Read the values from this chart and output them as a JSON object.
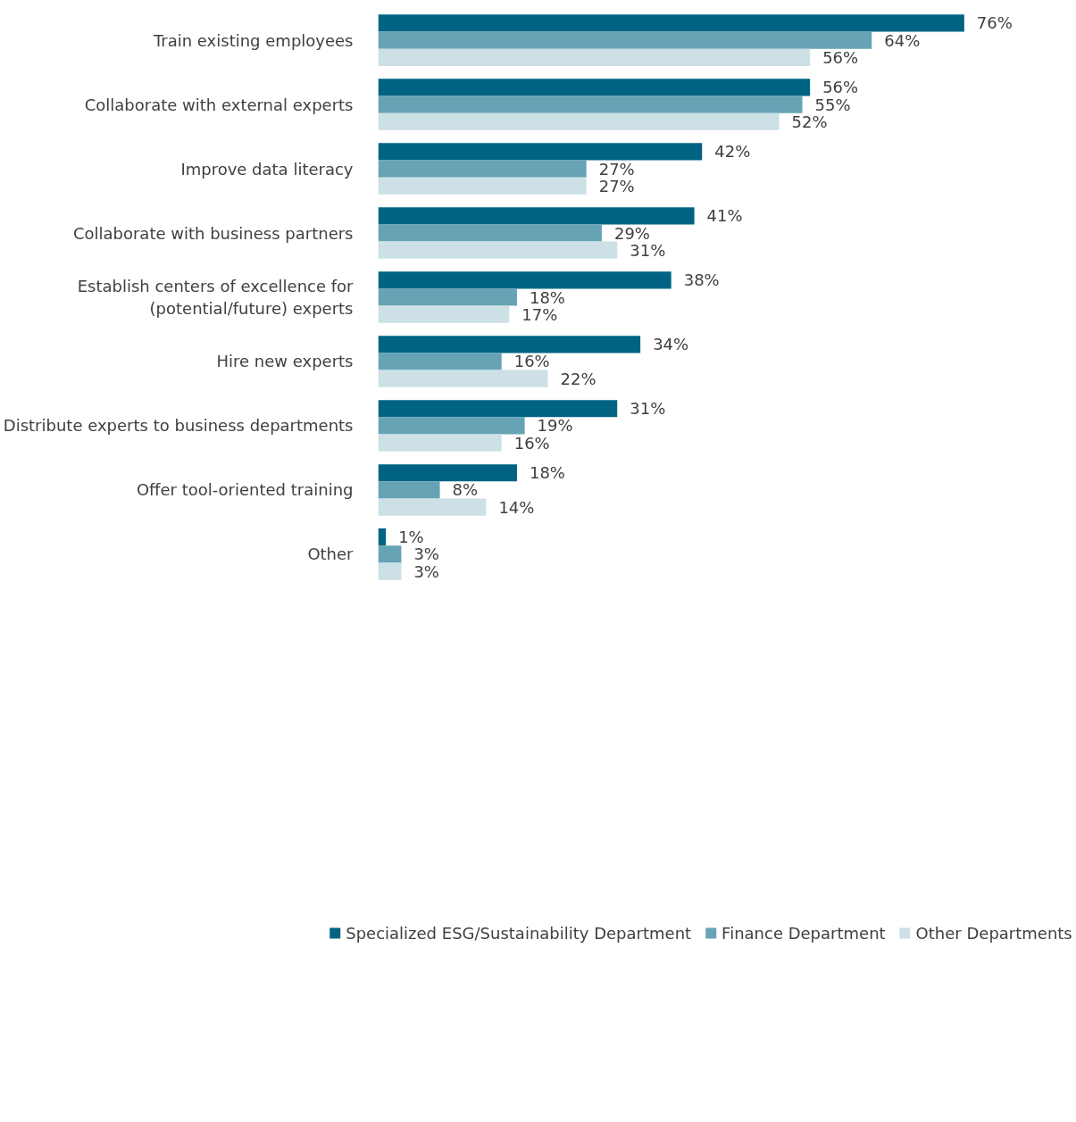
{
  "chart_data": {
    "type": "bar",
    "orientation": "horizontal",
    "categories": [
      "Train existing employees",
      "Collaborate with external experts",
      "Improve data literacy",
      "Collaborate with business partners",
      "Establish centers of excellence for (potential/future) experts",
      "Hire new experts",
      "Distribute experts to business departments",
      "Offer tool-oriented training",
      "Other"
    ],
    "series": [
      {
        "name": "Specialized ESG/Sustainability Department",
        "color": "#006382",
        "values": [
          76,
          56,
          42,
          41,
          38,
          34,
          31,
          18,
          1
        ],
        "value_labels": [
          "76%",
          "56%",
          "42%",
          "41%",
          "38%",
          "34%",
          "31%",
          "18%",
          "1%"
        ]
      },
      {
        "name": "Finance Department",
        "color": "#66a3b5",
        "values": [
          64,
          55,
          27,
          29,
          18,
          16,
          19,
          8,
          3
        ],
        "value_labels": [
          "64%",
          "55%",
          "27%",
          "29%",
          "18%",
          "16%",
          "19%",
          "8%",
          "3%"
        ]
      },
      {
        "name": "Other Departments",
        "color": "#cce0e6",
        "values": [
          56,
          52,
          27,
          31,
          17,
          22,
          16,
          14,
          3
        ],
        "value_labels": [
          "56%",
          "52%",
          "27%",
          "31%",
          "17%",
          "22%",
          "16%",
          "14%",
          "3%"
        ]
      }
    ],
    "legend": "bottom",
    "tick_labels": "y"
  }
}
